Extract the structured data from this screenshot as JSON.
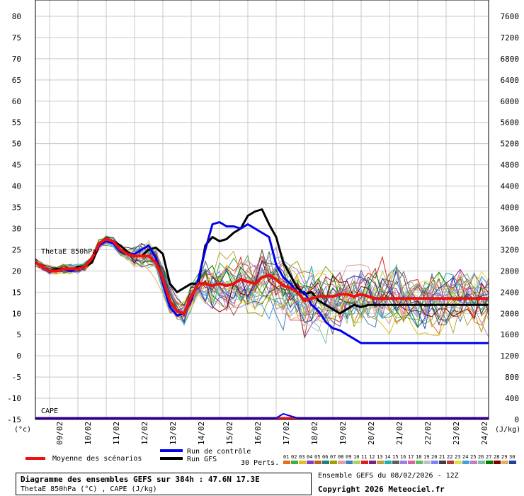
{
  "chart_data": {
    "type": "line",
    "title": "Diagramme des ensembles GEFS sur 384h : 47.6N 17.3E",
    "subtitle": "ThetaE 850hPa (°C) , CAPE (J/kg)",
    "run_info": "Ensemble GEFS du 08/02/2026 - 12Z",
    "copyright": "Copyright 2026 Meteociel.fr",
    "ylabel_left": "(°c)",
    "ylabel_right": "(J/kg)",
    "panel_label_top": "ThetaE 850hPa",
    "panel_label_bottom": "CAPE",
    "ylim_left": [
      -15,
      80
    ],
    "ylim_right": [
      0,
      7600
    ],
    "yticks_left": [
      80,
      75,
      70,
      65,
      60,
      55,
      50,
      45,
      40,
      35,
      30,
      25,
      20,
      15,
      10,
      5,
      0,
      -5,
      -10,
      -15
    ],
    "yticks_right": [
      7600,
      7200,
      6800,
      6400,
      6000,
      5600,
      5200,
      4800,
      4400,
      4000,
      3600,
      3200,
      2800,
      2400,
      2000,
      1600,
      1200,
      800,
      400,
      0
    ],
    "x_dates": [
      "09/02",
      "10/02",
      "11/02",
      "12/02",
      "13/02",
      "14/02",
      "15/02",
      "16/02",
      "17/02",
      "18/02",
      "19/02",
      "20/02",
      "21/02",
      "22/02",
      "23/02",
      "24/02"
    ],
    "x_hours": [
      0,
      6,
      12,
      18,
      24,
      30,
      36,
      42,
      48,
      54,
      60,
      66,
      72,
      78,
      84,
      90,
      96,
      102,
      108,
      114,
      120,
      126,
      132,
      138,
      144,
      150,
      156,
      162,
      168,
      174,
      180,
      186,
      192,
      198,
      204,
      210,
      216,
      222,
      228,
      234,
      240,
      246,
      252,
      258,
      264,
      270,
      276,
      282,
      288,
      294,
      300,
      306,
      312,
      318,
      324,
      330,
      336,
      342,
      348,
      354,
      360,
      366,
      372,
      378,
      384
    ],
    "grid": true,
    "legend": {
      "mean_label": "Moyenne des scénarios",
      "control_label": "Run de contrôle",
      "gfs_label": "Run GFS",
      "perts_label": "30 Perts.",
      "pert_ids": [
        "01",
        "02",
        "03",
        "04",
        "05",
        "06",
        "07",
        "08",
        "09",
        "10",
        "11",
        "12",
        "13",
        "14",
        "15",
        "16",
        "17",
        "18",
        "19",
        "20",
        "21",
        "22",
        "23",
        "24",
        "25",
        "26",
        "27",
        "28",
        "29",
        "30"
      ],
      "pert_colors": [
        "#e07020",
        "#40b040",
        "#e0c020",
        "#8040c0",
        "#c06020",
        "#208080",
        "#a0a000",
        "#e0a0a0",
        "#4080c0",
        "#b0d060",
        "#e02020",
        "#802080",
        "#c0a040",
        "#20b0b0",
        "#606060",
        "#a080e0",
        "#e060a0",
        "#60c060",
        "#c0c0c0",
        "#8080ff",
        "#404040",
        "#b04040",
        "#e0e040",
        "#40a0e0",
        "#c080c0",
        "#80c0a0",
        "#008000",
        "#800000",
        "#e0b060",
        "#2040a0"
      ]
    },
    "series": [
      {
        "name": "Moyenne des scénarios",
        "color": "#ee1111",
        "values": [
          22,
          21,
          20,
          20,
          20.5,
          20.5,
          20.5,
          21,
          23,
          26.5,
          27.5,
          27,
          25,
          24,
          23.5,
          23.5,
          23.5,
          22,
          18,
          13,
          10.5,
          10,
          14,
          17,
          17,
          16.5,
          17,
          16.5,
          17,
          18,
          17.5,
          17,
          18.5,
          19,
          18,
          16.5,
          16,
          15,
          13,
          13.5,
          14,
          14,
          14,
          14.5,
          14.5,
          14,
          14.5,
          14,
          13.5,
          13.5,
          13.5,
          13.5,
          13.5,
          13.5,
          13.5,
          13.5,
          13.5,
          13.5,
          13.5,
          13.5,
          13.5,
          13.5,
          13.5,
          13.5,
          13.5
        ]
      },
      {
        "name": "Run de contrôle",
        "color": "#0000ee",
        "values": [
          22,
          21,
          20,
          20,
          20.5,
          20,
          20.5,
          21,
          23,
          26,
          27,
          26.5,
          24.5,
          24,
          24,
          25,
          26,
          23,
          17,
          11.5,
          9.5,
          10,
          13,
          18,
          25,
          31,
          31.5,
          30.5,
          30.5,
          30,
          31,
          30,
          29,
          28,
          21.5,
          18.5,
          17,
          15,
          15,
          12,
          10.5,
          8,
          6.5,
          6,
          5,
          4,
          3,
          3,
          3,
          3,
          3,
          3,
          3,
          3,
          3,
          3,
          3,
          3,
          3,
          3,
          3,
          3,
          3,
          3,
          3
        ]
      },
      {
        "name": "Run GFS",
        "color": "#000000",
        "values": [
          22,
          21,
          20,
          20.5,
          20.5,
          20,
          21,
          21,
          22,
          26,
          27.5,
          27,
          26,
          24.5,
          23.5,
          23.5,
          25,
          25.5,
          24,
          17,
          15,
          16,
          17,
          17,
          26,
          28,
          27,
          27.5,
          29,
          30,
          33,
          34,
          34.5,
          31,
          28,
          22,
          19,
          16,
          14.5,
          15,
          13,
          12,
          11,
          10,
          11,
          12,
          11.5,
          12,
          12,
          12,
          12,
          12,
          12,
          12,
          12,
          12,
          12,
          12,
          12,
          12,
          12,
          12,
          12,
          12,
          12
        ]
      }
    ],
    "cape_series_note": "CAPE near 0 J/kg throughout with small spikes",
    "cape_control": [
      0,
      0,
      0,
      0,
      0,
      0,
      0,
      0,
      0,
      0,
      0,
      0,
      0,
      0,
      0,
      0,
      0,
      0,
      0,
      0,
      0,
      0,
      0,
      0,
      0,
      0,
      0,
      0,
      0,
      0,
      0,
      0,
      0,
      0,
      0,
      80,
      40,
      0,
      0,
      0,
      0,
      0,
      0,
      0,
      0,
      0,
      0,
      0,
      0,
      0,
      0,
      0,
      0,
      0,
      0,
      0,
      0,
      0,
      0,
      0,
      0,
      0,
      0,
      0,
      0
    ]
  }
}
